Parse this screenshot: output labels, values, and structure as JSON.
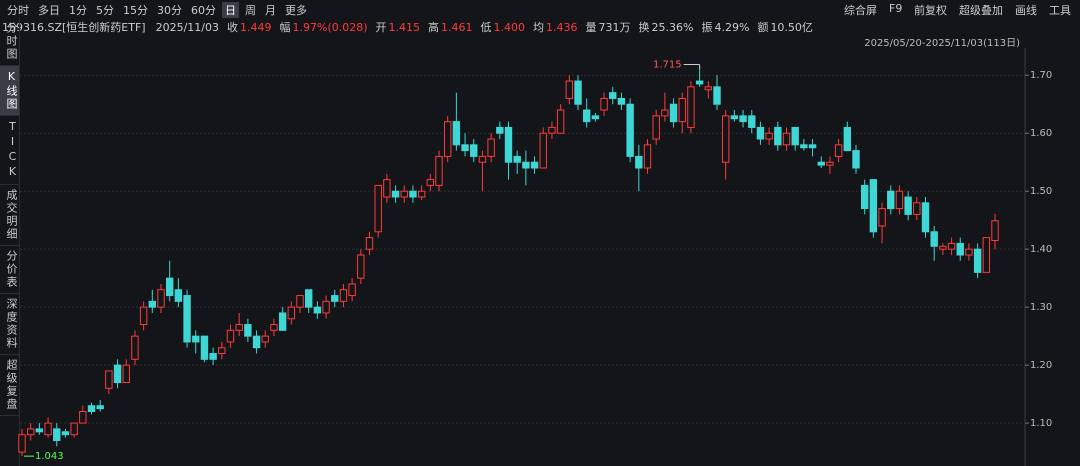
{
  "toolbar": {
    "periods": [
      "分时",
      "多日",
      "1分",
      "5分",
      "15分",
      "30分",
      "60分",
      "日",
      "周",
      "月",
      "更多"
    ],
    "active": "日",
    "tools": [
      "综合屏",
      "F9",
      "前复权",
      "超级叠加",
      "画线",
      "工具"
    ]
  },
  "quote": {
    "security": "159316.SZ[恒生创新药ETF]",
    "date": "2025/11/03",
    "fields": [
      [
        "收",
        "1.449"
      ],
      [
        "幅",
        "1.97%(0.028)"
      ],
      [
        "开",
        "1.415"
      ],
      [
        "高",
        "1.461"
      ],
      [
        "低",
        "1.400"
      ],
      [
        "均",
        "1.436"
      ],
      [
        "量",
        "731万"
      ],
      [
        "换",
        "25.36%"
      ],
      [
        "振",
        "4.29%"
      ],
      [
        "额",
        "10.50亿"
      ]
    ]
  },
  "sidebar": [
    "分时图",
    "K线图",
    "TICK",
    "成交明细",
    "分价表",
    "深度资料",
    "超级复盘"
  ],
  "sidebar_active": "K线图",
  "chart_data": {
    "type": "candlestick",
    "range_label": "2025/05/20-2025/11/03(113日)",
    "up_color": "#ff3b3b",
    "down_color": "#3fd6d6",
    "ylim": [
      1.026,
      1.747
    ],
    "yticks": [
      {
        "value": 1.1,
        "label": "1.10"
      },
      {
        "value": 1.2,
        "label": "1.20"
      },
      {
        "value": 1.3,
        "label": "1.30"
      },
      {
        "value": 1.4,
        "label": "1.40"
      },
      {
        "value": 1.5,
        "label": "1.50"
      },
      {
        "value": 1.6,
        "label": "1.60"
      },
      {
        "value": 1.7,
        "label": "1.70"
      }
    ],
    "grid": true,
    "max_label": 1.715,
    "min_label": 1.043,
    "ohlc": [
      [
        1.05,
        1.09,
        1.043,
        1.08
      ],
      [
        1.08,
        1.1,
        1.07,
        1.09
      ],
      [
        1.09,
        1.1,
        1.08,
        1.085
      ],
      [
        1.08,
        1.11,
        1.075,
        1.1
      ],
      [
        1.09,
        1.1,
        1.06,
        1.07
      ],
      [
        1.085,
        1.09,
        1.075,
        1.08
      ],
      [
        1.08,
        1.1,
        1.075,
        1.1
      ],
      [
        1.1,
        1.13,
        1.1,
        1.12
      ],
      [
        1.13,
        1.135,
        1.115,
        1.12
      ],
      [
        1.13,
        1.14,
        1.12,
        1.125
      ],
      [
        1.16,
        1.19,
        1.15,
        1.19
      ],
      [
        1.2,
        1.21,
        1.16,
        1.17
      ],
      [
        1.17,
        1.21,
        1.17,
        1.2
      ],
      [
        1.21,
        1.26,
        1.2,
        1.25
      ],
      [
        1.27,
        1.31,
        1.26,
        1.3
      ],
      [
        1.31,
        1.33,
        1.29,
        1.3
      ],
      [
        1.3,
        1.34,
        1.29,
        1.33
      ],
      [
        1.35,
        1.38,
        1.31,
        1.32
      ],
      [
        1.33,
        1.35,
        1.3,
        1.31
      ],
      [
        1.32,
        1.33,
        1.23,
        1.24
      ],
      [
        1.25,
        1.26,
        1.22,
        1.24
      ],
      [
        1.25,
        1.25,
        1.205,
        1.21
      ],
      [
        1.22,
        1.23,
        1.2,
        1.21
      ],
      [
        1.22,
        1.24,
        1.21,
        1.23
      ],
      [
        1.24,
        1.27,
        1.23,
        1.26
      ],
      [
        1.26,
        1.29,
        1.25,
        1.27
      ],
      [
        1.27,
        1.28,
        1.24,
        1.25
      ],
      [
        1.25,
        1.26,
        1.22,
        1.23
      ],
      [
        1.24,
        1.26,
        1.23,
        1.25
      ],
      [
        1.26,
        1.28,
        1.25,
        1.27
      ],
      [
        1.29,
        1.3,
        1.26,
        1.26
      ],
      [
        1.28,
        1.31,
        1.27,
        1.3
      ],
      [
        1.3,
        1.32,
        1.29,
        1.32
      ],
      [
        1.33,
        1.33,
        1.29,
        1.3
      ],
      [
        1.3,
        1.31,
        1.28,
        1.29
      ],
      [
        1.29,
        1.32,
        1.28,
        1.31
      ],
      [
        1.32,
        1.33,
        1.3,
        1.31
      ],
      [
        1.31,
        1.34,
        1.3,
        1.33
      ],
      [
        1.32,
        1.35,
        1.31,
        1.34
      ],
      [
        1.35,
        1.4,
        1.34,
        1.39
      ],
      [
        1.4,
        1.43,
        1.39,
        1.42
      ],
      [
        1.43,
        1.51,
        1.42,
        1.51
      ],
      [
        1.49,
        1.53,
        1.48,
        1.52
      ],
      [
        1.5,
        1.51,
        1.48,
        1.49
      ],
      [
        1.49,
        1.51,
        1.48,
        1.5
      ],
      [
        1.5,
        1.51,
        1.48,
        1.49
      ],
      [
        1.49,
        1.51,
        1.485,
        1.5
      ],
      [
        1.51,
        1.53,
        1.5,
        1.52
      ],
      [
        1.51,
        1.57,
        1.5,
        1.56
      ],
      [
        1.56,
        1.63,
        1.55,
        1.62
      ],
      [
        1.62,
        1.67,
        1.57,
        1.58
      ],
      [
        1.58,
        1.6,
        1.56,
        1.57
      ],
      [
        1.58,
        1.59,
        1.55,
        1.56
      ],
      [
        1.55,
        1.57,
        1.5,
        1.56
      ],
      [
        1.56,
        1.6,
        1.55,
        1.59
      ],
      [
        1.61,
        1.62,
        1.59,
        1.6
      ],
      [
        1.61,
        1.62,
        1.52,
        1.55
      ],
      [
        1.56,
        1.57,
        1.53,
        1.55
      ],
      [
        1.55,
        1.57,
        1.51,
        1.54
      ],
      [
        1.55,
        1.56,
        1.53,
        1.54
      ],
      [
        1.54,
        1.61,
        1.54,
        1.6
      ],
      [
        1.6,
        1.62,
        1.59,
        1.61
      ],
      [
        1.6,
        1.65,
        1.6,
        1.64
      ],
      [
        1.66,
        1.7,
        1.65,
        1.69
      ],
      [
        1.69,
        1.7,
        1.64,
        1.65
      ],
      [
        1.64,
        1.66,
        1.61,
        1.62
      ],
      [
        1.63,
        1.635,
        1.62,
        1.625
      ],
      [
        1.64,
        1.67,
        1.63,
        1.66
      ],
      [
        1.67,
        1.68,
        1.65,
        1.66
      ],
      [
        1.66,
        1.67,
        1.64,
        1.65
      ],
      [
        1.65,
        1.66,
        1.55,
        1.56
      ],
      [
        1.56,
        1.58,
        1.5,
        1.54
      ],
      [
        1.54,
        1.59,
        1.53,
        1.58
      ],
      [
        1.59,
        1.64,
        1.58,
        1.63
      ],
      [
        1.63,
        1.67,
        1.62,
        1.64
      ],
      [
        1.65,
        1.66,
        1.61,
        1.62
      ],
      [
        1.62,
        1.67,
        1.6,
        1.66
      ],
      [
        1.61,
        1.69,
        1.6,
        1.68
      ],
      [
        1.69,
        1.715,
        1.68,
        1.685
      ],
      [
        1.675,
        1.69,
        1.66,
        1.68
      ],
      [
        1.68,
        1.7,
        1.64,
        1.65
      ],
      [
        1.55,
        1.64,
        1.52,
        1.63
      ],
      [
        1.63,
        1.64,
        1.62,
        1.625
      ],
      [
        1.63,
        1.64,
        1.61,
        1.62
      ],
      [
        1.63,
        1.64,
        1.6,
        1.61
      ],
      [
        1.61,
        1.62,
        1.58,
        1.59
      ],
      [
        1.59,
        1.61,
        1.58,
        1.6
      ],
      [
        1.61,
        1.62,
        1.57,
        1.58
      ],
      [
        1.58,
        1.61,
        1.57,
        1.6
      ],
      [
        1.61,
        1.61,
        1.57,
        1.58
      ],
      [
        1.58,
        1.59,
        1.57,
        1.575
      ],
      [
        1.58,
        1.59,
        1.56,
        1.575
      ],
      [
        1.55,
        1.56,
        1.54,
        1.545
      ],
      [
        1.545,
        1.56,
        1.53,
        1.55
      ],
      [
        1.56,
        1.59,
        1.55,
        1.58
      ],
      [
        1.61,
        1.62,
        1.57,
        1.57
      ],
      [
        1.57,
        1.58,
        1.53,
        1.54
      ],
      [
        1.51,
        1.52,
        1.46,
        1.47
      ],
      [
        1.52,
        1.52,
        1.42,
        1.43
      ],
      [
        1.44,
        1.48,
        1.41,
        1.47
      ],
      [
        1.5,
        1.51,
        1.46,
        1.47
      ],
      [
        1.47,
        1.51,
        1.46,
        1.5
      ],
      [
        1.49,
        1.5,
        1.45,
        1.46
      ],
      [
        1.46,
        1.49,
        1.45,
        1.48
      ],
      [
        1.48,
        1.49,
        1.42,
        1.43
      ],
      [
        1.43,
        1.44,
        1.38,
        1.405
      ],
      [
        1.4,
        1.41,
        1.39,
        1.405
      ],
      [
        1.4,
        1.42,
        1.39,
        1.41
      ],
      [
        1.41,
        1.42,
        1.38,
        1.39
      ],
      [
        1.39,
        1.41,
        1.38,
        1.4
      ],
      [
        1.4,
        1.41,
        1.35,
        1.36
      ],
      [
        1.36,
        1.42,
        1.36,
        1.42
      ],
      [
        1.415,
        1.461,
        1.4,
        1.449
      ]
    ]
  }
}
